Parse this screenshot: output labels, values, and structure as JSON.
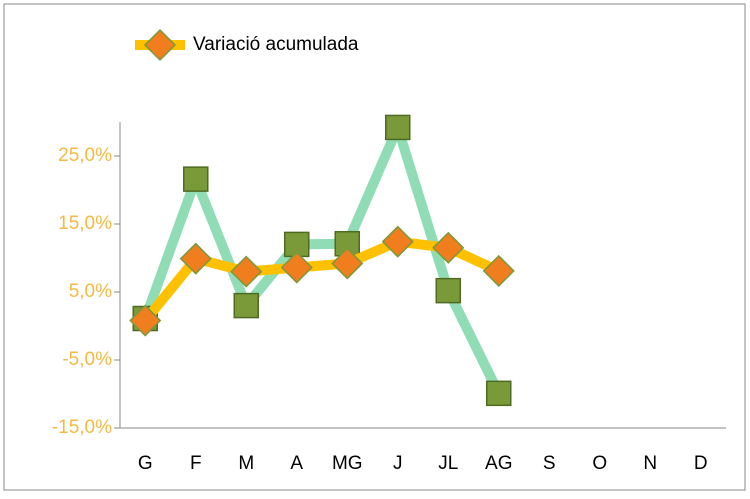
{
  "chart_data": {
    "type": "line",
    "categories": [
      "G",
      "F",
      "M",
      "A",
      "MG",
      "J",
      "JL",
      "AG",
      "S",
      "O",
      "N",
      "D"
    ],
    "series": [
      {
        "name": "Variació acumulada",
        "color": "#ffc000",
        "marker": "diamond",
        "marker_color": "#f07d1e",
        "values": [
          0.8,
          9.9,
          8.0,
          8.6,
          9.2,
          12.4,
          11.5,
          8.1,
          null,
          null,
          null,
          null
        ]
      },
      {
        "color": "#8fdcb5",
        "marker": "square",
        "marker_color": "#7a9a3a",
        "values": [
          1.1,
          21.6,
          3.0,
          12.0,
          12.1,
          29.2,
          5.2,
          -9.9,
          null,
          null,
          null,
          null
        ]
      }
    ],
    "ylim": [
      -15,
      30
    ],
    "yticks": [
      {
        "value": -15,
        "label": "-15,0%"
      },
      {
        "value": -5,
        "label": "-5,0%"
      },
      {
        "value": 5,
        "label": "5,0%"
      },
      {
        "value": 15,
        "label": "15,0%"
      },
      {
        "value": 25,
        "label": "25,0%"
      }
    ],
    "tick_label_color": "#f5b942"
  }
}
